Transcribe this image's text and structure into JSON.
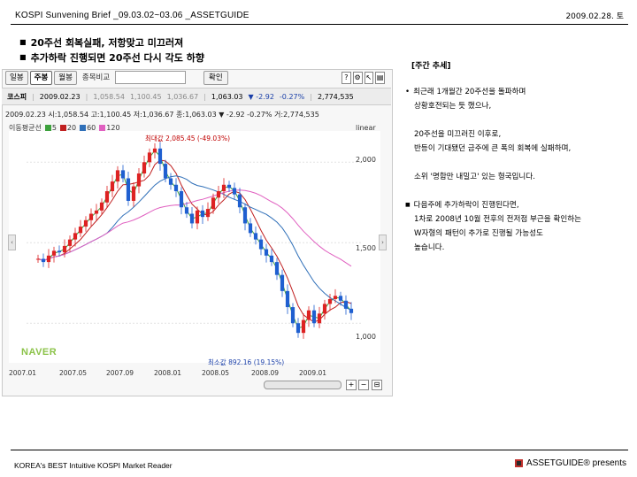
{
  "header": {
    "title": "KOSPI  Sunvening Brief _09.03.02~03.06 _ASSETGUIDE",
    "date": "2009.02.28. 토"
  },
  "bullets": [
    "20주선 회복실패, 저항맞고 미끄러져",
    "추가하락 진행되면 20주선 다시 각도 하향"
  ],
  "chart_widget": {
    "tabs": [
      "일봉",
      "주봉",
      "월봉"
    ],
    "active_tab": "주봉",
    "compare_label": "종목비교",
    "compare_input": "",
    "confirm_label": "확인",
    "toolbar_icons": [
      "help-icon",
      "settings-icon",
      "pointer-icon",
      "chart-style-icon"
    ],
    "quote": {
      "name": "코스피",
      "date": "2009.02.23",
      "open": "1,058.54",
      "high": "1,100.45",
      "low": "1,036.67",
      "close": "1,063.03",
      "change": "▼ -2.92",
      "change_pct": "-0.27%",
      "volume": "2,774,535"
    },
    "ohlc_line": "2009.02.23 시:1,058.54 고:1,100.45 저:1,036.67 종:1,063.03 ▼  -2.92  -0.27% 거:2,774,535",
    "ma_label": "이동평균선",
    "ma_items": [
      {
        "label": "5",
        "color": "#3ca13c"
      },
      {
        "label": "20",
        "color": "#c02020"
      },
      {
        "label": "60",
        "color": "#2f6fb8"
      },
      {
        "label": "120",
        "color": "#e060c0"
      }
    ],
    "scale_label": "linear",
    "annot_max": "최대값 2,085.45 (-49.03%)",
    "annot_min": "최소값 892.16 (19.15%)",
    "watermark": "NAVER",
    "zoom_in": "+",
    "zoom_out": "−",
    "left_arrow": "‹",
    "right_arrow": "›"
  },
  "chart_data": {
    "type": "candlestick",
    "title": "",
    "xlabel": "",
    "ylabel": "",
    "x_ticks": [
      "2007.01",
      "2007.05",
      "2007.09",
      "2008.01",
      "2008.05",
      "2008.09",
      "2009.01"
    ],
    "y_ticks": [
      "2,000",
      "1,500",
      "1,000"
    ],
    "ylim": [
      820,
      2150
    ],
    "close_series": [
      1400,
      1380,
      1420,
      1450,
      1440,
      1480,
      1520,
      1560,
      1600,
      1640,
      1680,
      1700,
      1750,
      1820,
      1880,
      1950,
      1900,
      1760,
      1850,
      1930,
      2000,
      2060,
      2085,
      1990,
      1900,
      1860,
      1820,
      1720,
      1680,
      1620,
      1700,
      1660,
      1710,
      1780,
      1820,
      1860,
      1840,
      1800,
      1720,
      1620,
      1560,
      1520,
      1460,
      1420,
      1380,
      1300,
      1200,
      1100,
      1000,
      940,
      1020,
      1080,
      1000,
      1060,
      1120,
      1150,
      1170,
      1140,
      1090,
      1063
    ],
    "series": [
      {
        "name": "5",
        "color": "#3ca13c"
      },
      {
        "name": "20",
        "color": "#c02020"
      },
      {
        "name": "60",
        "color": "#2f6fb8"
      },
      {
        "name": "120",
        "color": "#e060c0"
      }
    ]
  },
  "commentary": {
    "title": "[주간 추세]",
    "p1_l1": "최근래 1개월간 20주선을 돌파하며",
    "p1_l2": "상황호전되는 듯 했으나,",
    "p2_l1": "20주선을 미끄러진 이후로,",
    "p2_l2": "반등이 기대됐던 금주에 큰 폭의 회복에 실패하며,",
    "p3": "소위 '명함만 내밀고' 있는 형국입니다.",
    "p4_l1": "다음주에 추가하락이 진행된다면,",
    "p4_l2": "1차로 2008년 10월 전후의 전저점 부근을 확인하는",
    "p4_l3": "W자형의 패턴이 추가로 진행될 가능성도",
    "p4_l4": "높습니다."
  },
  "footer": {
    "left": "KOREA's BEST Intuitive KOSPI Market Reader",
    "right": "ASSETGUIDE® presents"
  }
}
